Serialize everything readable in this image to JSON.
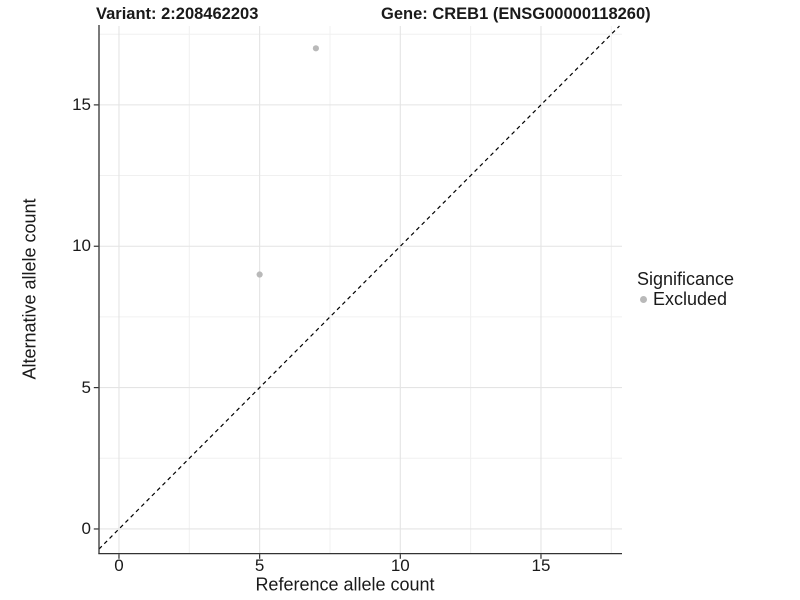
{
  "titles": {
    "variant": "Variant: 2:208462203",
    "gene": "Gene: CREB1 (ENSG00000118260)"
  },
  "axes": {
    "x": {
      "label": "Reference allele count"
    },
    "y": {
      "label": "Alternative allele count"
    }
  },
  "legend": {
    "title": "Significance",
    "items": [
      {
        "label": "Excluded",
        "color": "#b9b9b9"
      }
    ]
  },
  "chart_data": {
    "type": "scatter",
    "title": "Variant: 2:208462203 / Gene: CREB1 (ENSG00000118260)",
    "xlabel": "Reference allele count",
    "ylabel": "Alternative allele count",
    "xlim": [
      -0.71,
      17.88
    ],
    "ylim": [
      -0.85,
      17.79
    ],
    "x_ticks": [
      0,
      5,
      10,
      15
    ],
    "y_ticks": [
      0,
      5,
      10,
      15
    ],
    "x_minor_ticks": [
      2.5,
      7.5,
      12.5,
      17.5
    ],
    "y_minor_ticks": [
      2.5,
      7.5,
      12.5,
      17.5
    ],
    "grid": "major+minor",
    "legend_position": "right",
    "series": [
      {
        "name": "Excluded",
        "color": "#b9b9b9",
        "points": [
          {
            "x": 7,
            "y": 17
          },
          {
            "x": 5,
            "y": 9
          }
        ]
      }
    ],
    "reference_line": {
      "type": "identity y=x",
      "style": "dashed",
      "color": "#000000"
    }
  },
  "colors": {
    "background": "#ffffff",
    "grid_major": "#e4e4e4",
    "grid_minor": "#f0f0f0",
    "axis": "#333333",
    "text": "#1a1a1a",
    "point": "#b9b9b9"
  }
}
